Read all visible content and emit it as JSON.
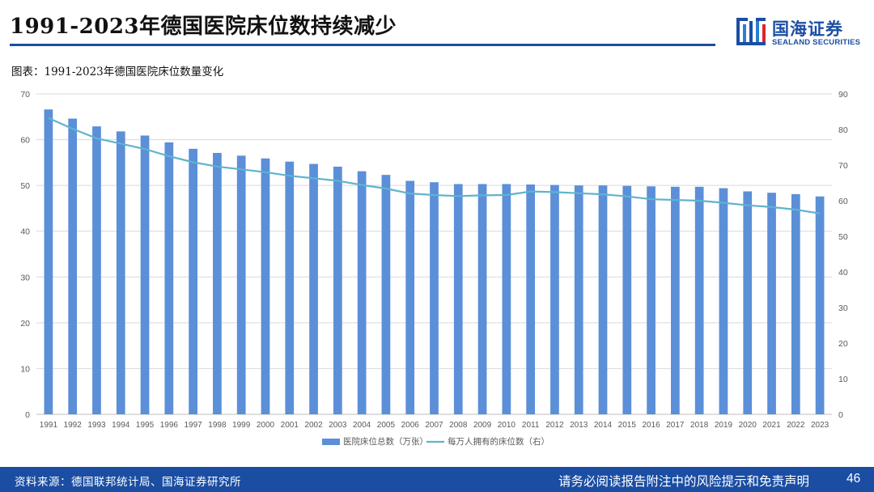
{
  "page": {
    "title": "1991-2023年德国医院床位数持续减少",
    "subtitle": "图表：1991-2023年德国医院床位数量变化",
    "logo_cn": "国海证券",
    "logo_en": "SEALAND SECURITIES",
    "source": "资料来源：德国联邦统计局、国海证券研究所",
    "disclaimer": "请务必阅读报告附注中的风险提示和免责声明",
    "page_number": "46"
  },
  "colors": {
    "brand": "#1b4ea3",
    "bar": "#5b8fd8",
    "line": "#5fb3cf",
    "grid": "#d9d9d9",
    "tick": "#595959"
  },
  "chart_data": {
    "type": "bar+line",
    "categories": [
      "1991",
      "1992",
      "1993",
      "1994",
      "1995",
      "1996",
      "1997",
      "1998",
      "1999",
      "2000",
      "2001",
      "2002",
      "2003",
      "2004",
      "2005",
      "2006",
      "2007",
      "2008",
      "2009",
      "2010",
      "2011",
      "2012",
      "2013",
      "2014",
      "2015",
      "2016",
      "2017",
      "2018",
      "2019",
      "2020",
      "2021",
      "2022",
      "2023"
    ],
    "series": [
      {
        "name": "医院床位总数（万张）",
        "type": "bar",
        "axis": "left",
        "values": [
          66.6,
          64.6,
          62.9,
          61.8,
          60.9,
          59.4,
          58.0,
          57.1,
          56.5,
          55.9,
          55.2,
          54.7,
          54.1,
          53.1,
          52.3,
          51.0,
          50.7,
          50.3,
          50.3,
          50.3,
          50.2,
          50.1,
          50.0,
          50.0,
          49.9,
          49.8,
          49.7,
          49.7,
          49.4,
          48.7,
          48.4,
          48.1,
          47.6
        ]
      },
      {
        "name": "每万人拥有的床位数（右）",
        "type": "line",
        "axis": "right",
        "values": [
          83.2,
          80.2,
          77.5,
          76.0,
          74.5,
          72.5,
          70.8,
          69.6,
          68.8,
          68.0,
          67.0,
          66.3,
          65.6,
          64.4,
          63.4,
          62.0,
          61.6,
          61.3,
          61.5,
          61.6,
          62.6,
          62.4,
          62.1,
          61.8,
          61.2,
          60.4,
          60.2,
          60.0,
          59.4,
          58.7,
          58.2,
          57.5,
          56.4
        ]
      }
    ],
    "left_axis": {
      "ylim": [
        0,
        70
      ],
      "ticks": [
        "0",
        "10",
        "20",
        "30",
        "40",
        "50",
        "60",
        "70"
      ]
    },
    "right_axis": {
      "ylim": [
        0,
        90
      ],
      "ticks": [
        "0",
        "10",
        "20",
        "30",
        "40",
        "50",
        "60",
        "70",
        "80",
        "90"
      ]
    },
    "grid": true,
    "legend_position": "bottom-center"
  }
}
